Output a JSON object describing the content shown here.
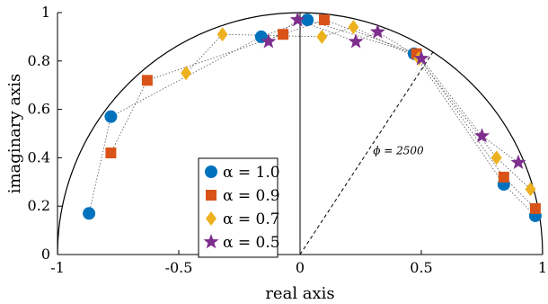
{
  "chart_data": {
    "type": "scatter",
    "title": "",
    "xlabel": "real axis",
    "ylabel": "imaginary axis",
    "xlim": [
      -1,
      1
    ],
    "ylim": [
      0,
      1
    ],
    "xticks": [
      -1,
      -0.5,
      0,
      0.5,
      1
    ],
    "yticks": [
      0,
      0.2,
      0.4,
      0.6,
      0.8,
      1
    ],
    "xtick_labels": [
      "-1",
      "-0.5",
      "0",
      "0.5",
      "1"
    ],
    "ytick_labels": [
      "0",
      "0.2",
      "0.4",
      "0.6",
      "0.8",
      "1"
    ],
    "grid": false,
    "legend_position": "lower-center",
    "reference": {
      "unit_semicircle": true,
      "vertical_line_at_x": 0,
      "dashed_ray_end": [
        0.55,
        0.84
      ],
      "annotation": "ϕ = 2500"
    },
    "series": [
      {
        "name": "α = 1.0",
        "marker": "circle",
        "color": "#0072BD",
        "x": [
          -0.87,
          -0.78,
          -0.16,
          0.03,
          0.47,
          0.84,
          0.97
        ],
        "y": [
          0.17,
          0.57,
          0.9,
          0.97,
          0.83,
          0.29,
          0.16
        ]
      },
      {
        "name": "α = 0.9",
        "marker": "square",
        "color": "#D95319",
        "x": [
          -0.78,
          -0.63,
          -0.07,
          0.1,
          0.48,
          0.84,
          0.97
        ],
        "y": [
          0.42,
          0.72,
          0.91,
          0.97,
          0.83,
          0.32,
          0.19
        ]
      },
      {
        "name": "α = 0.7",
        "marker": "diamond",
        "color": "#EDB120",
        "x": [
          -0.47,
          -0.32,
          0.09,
          0.22,
          0.49,
          0.81,
          0.95
        ],
        "y": [
          0.75,
          0.91,
          0.9,
          0.94,
          0.81,
          0.4,
          0.27
        ]
      },
      {
        "name": "α = 0.5",
        "marker": "star",
        "color": "#7E2F8E",
        "x": [
          -0.13,
          -0.01,
          0.23,
          0.32,
          0.5,
          0.75,
          0.9
        ],
        "y": [
          0.88,
          0.97,
          0.88,
          0.92,
          0.81,
          0.49,
          0.38
        ]
      }
    ]
  }
}
